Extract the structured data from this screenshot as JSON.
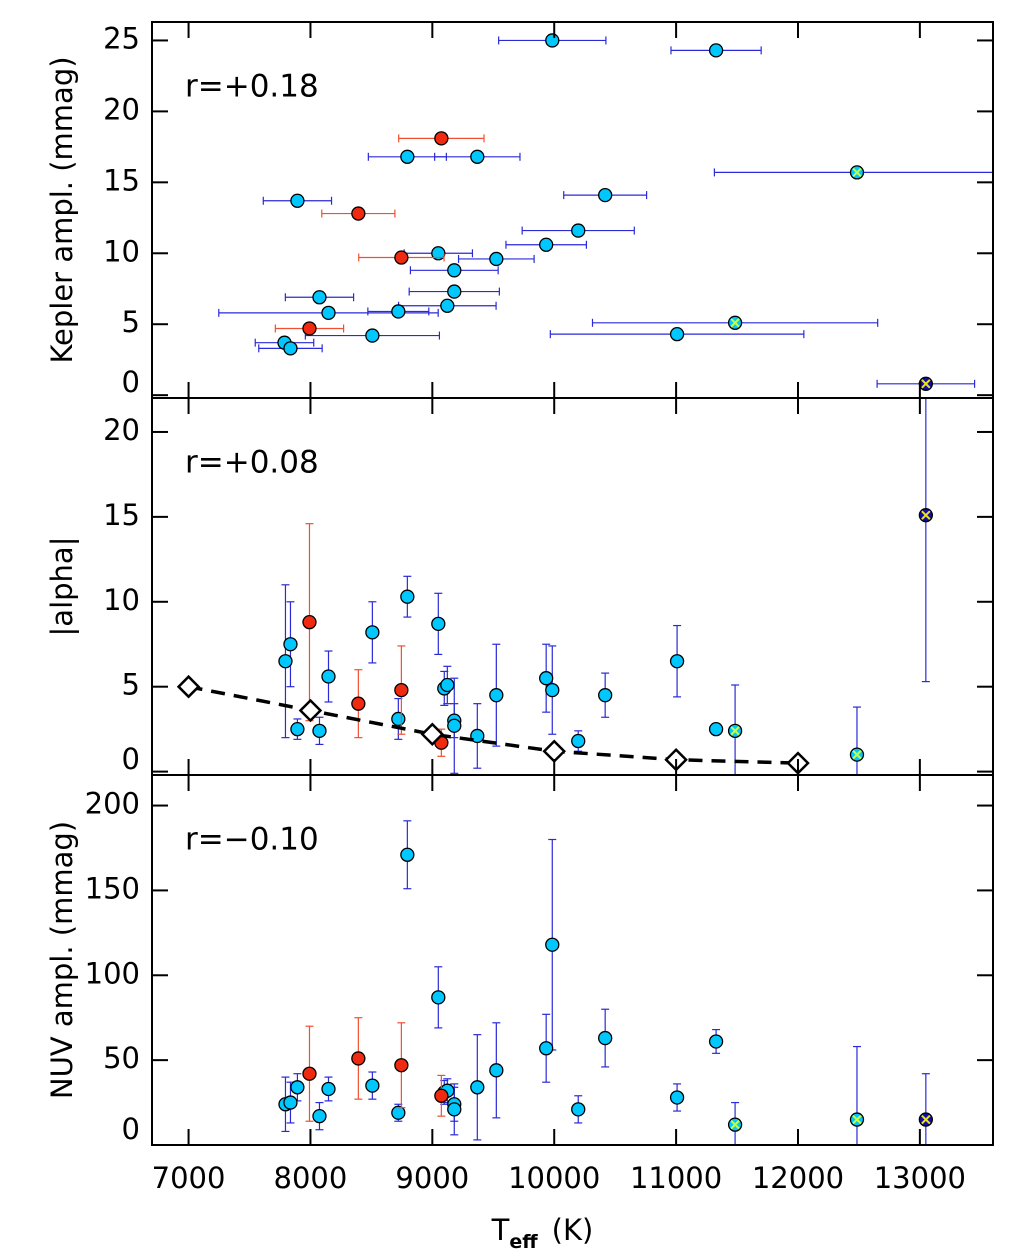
{
  "chart_data": [
    {
      "type": "scatter",
      "ylabel": "Kepler ampl. (mmag)",
      "annotation": "r=+0.18",
      "xlim": [
        6700,
        13600
      ],
      "xticks": [
        7000,
        8000,
        9000,
        10000,
        11000,
        12000,
        13000
      ],
      "ylim": [
        -0.2,
        26.3
      ],
      "yticks": [
        0,
        5,
        10,
        15,
        20,
        25
      ],
      "series": [
        {
          "color": "#00c8ff",
          "errcolor": "#2a2ad8",
          "marker": "circle",
          "x": [
            9984,
            11328,
            8795,
            9369,
            10418,
            7893,
            10197,
            9934,
            9049,
            9525,
            9180,
            9180,
            8074,
            9123,
            8721,
            8148,
            11008,
            8508,
            7787,
            7836
          ],
          "values": [
            25.0,
            24.3,
            16.8,
            16.8,
            14.1,
            13.7,
            11.6,
            10.6,
            10.0,
            9.6,
            8.8,
            7.3,
            6.9,
            6.3,
            5.9,
            5.8,
            4.3,
            4.2,
            3.7,
            3.3
          ],
          "xerr": [
            440,
            370,
            320,
            350,
            340,
            280,
            460,
            330,
            280,
            310,
            360,
            370,
            280,
            400,
            250,
            900,
            1040,
            550,
            240,
            260
          ]
        },
        {
          "color": "#f02a10",
          "errcolor": "#f05030",
          "marker": "circle",
          "x": [
            9074,
            8393,
            8746,
            7992
          ],
          "values": [
            18.1,
            12.8,
            9.7,
            4.7
          ],
          "xerr": [
            350,
            300,
            350,
            280
          ]
        },
        {
          "color": "#00c8ff",
          "errcolor": "#2a2ad8",
          "marker": "circle-x",
          "cross": "#c8ff40",
          "x": [
            12484,
            11484
          ],
          "values": [
            15.7,
            5.1
          ],
          "xerr": [
            1170,
            1170
          ]
        },
        {
          "color": "#1010a0",
          "errcolor": "#2a2ad8",
          "marker": "circle-x",
          "cross": "#f0e020",
          "x": [
            13049
          ],
          "values": [
            0.8
          ],
          "xerr": [
            400
          ]
        }
      ]
    },
    {
      "type": "scatter",
      "ylabel": "|alpha|",
      "annotation": "r=+0.08",
      "xlim": [
        6700,
        13600
      ],
      "xticks": [
        7000,
        8000,
        9000,
        10000,
        11000,
        12000,
        13000
      ],
      "ylim": [
        -0.2,
        22
      ],
      "yticks": [
        0,
        5,
        10,
        15,
        20
      ],
      "series": [
        {
          "color": "#00c8ff",
          "errcolor": "#2a2ad8",
          "marker": "circle",
          "x": [
            7795,
            7836,
            7893,
            8074,
            8148,
            8508,
            8721,
            8795,
            9049,
            9098,
            9123,
            9180,
            9180,
            9369,
            9525,
            9934,
            9984,
            10197,
            10418,
            11008,
            11328
          ],
          "values": [
            6.5,
            7.5,
            2.5,
            2.4,
            5.6,
            8.2,
            3.1,
            10.3,
            8.7,
            4.9,
            5.1,
            3.0,
            2.7,
            2.1,
            4.5,
            5.5,
            4.8,
            1.8,
            4.5,
            6.5,
            2.5
          ],
          "yerr": [
            4.5,
            2.5,
            0.6,
            0.8,
            1.5,
            1.8,
            1.2,
            1.2,
            1.8,
            1.0,
            1.1,
            1.0,
            2.8,
            1.9,
            3.0,
            2.0,
            2.6,
            0.6,
            1.3,
            2.1,
            0.3
          ]
        },
        {
          "color": "#f02a10",
          "errcolor": "#f05030",
          "marker": "circle",
          "x": [
            7992,
            8393,
            8746,
            9074
          ],
          "values": [
            8.8,
            4.0,
            4.8,
            1.7
          ],
          "yerr": [
            5.8,
            2.0,
            2.6,
            0.8
          ]
        },
        {
          "color": "#00c8ff",
          "errcolor": "#2a2ad8",
          "marker": "circle-x",
          "cross": "#c8ff40",
          "x": [
            11484,
            12484
          ],
          "values": [
            2.4,
            1.0
          ],
          "yerr": [
            2.7,
            2.8
          ]
        },
        {
          "color": "#1010a0",
          "errcolor": "#2a2ad8",
          "marker": "circle-x",
          "cross": "#f0e020",
          "x": [
            13049
          ],
          "values": [
            15.1
          ],
          "yerr": [
            9.8
          ]
        },
        {
          "color": "#000000",
          "marker": "diamond",
          "line": "dashed",
          "x": [
            7000,
            8000,
            9000,
            10000,
            11000,
            12000
          ],
          "values": [
            5.0,
            3.6,
            2.2,
            1.2,
            0.7,
            0.5
          ]
        }
      ]
    },
    {
      "type": "scatter",
      "ylabel": "NUV ampl. (mmag)",
      "annotation": "r=−0.10",
      "xlabel": {
        "main": "T",
        "sub": "eff",
        "unit": "(K)"
      },
      "xlim": [
        6700,
        13600
      ],
      "xticks": [
        7000,
        8000,
        9000,
        10000,
        11000,
        12000,
        13000
      ],
      "ylim": [
        0,
        218
      ],
      "yticks": [
        0,
        50,
        100,
        150,
        200
      ],
      "series": [
        {
          "color": "#00c8ff",
          "errcolor": "#2a2ad8",
          "marker": "circle",
          "x": [
            7795,
            7836,
            7893,
            8074,
            8148,
            8508,
            8721,
            8795,
            9049,
            9098,
            9123,
            9180,
            9180,
            9369,
            9525,
            9934,
            9984,
            10197,
            10418,
            11008,
            11328
          ],
          "values": [
            24,
            25,
            34,
            17,
            33,
            35,
            19,
            171,
            87,
            31,
            32,
            24,
            21,
            34,
            44,
            57,
            118,
            21,
            63,
            28,
            61
          ],
          "yerr": [
            16,
            12,
            8,
            8,
            7,
            8,
            5,
            20,
            18,
            7,
            7,
            10,
            15,
            31,
            28,
            20,
            62,
            8,
            17,
            8,
            7
          ]
        },
        {
          "color": "#f02a10",
          "errcolor": "#f05030",
          "marker": "circle",
          "x": [
            7992,
            8393,
            8746,
            9074
          ],
          "values": [
            42,
            51,
            47,
            29
          ],
          "yerr": [
            28,
            24,
            25,
            12
          ]
        },
        {
          "color": "#00c8ff",
          "errcolor": "#2a2ad8",
          "marker": "circle-x",
          "cross": "#c8ff40",
          "x": [
            11484,
            12484
          ],
          "values": [
            12,
            15
          ],
          "yerr": [
            13,
            43
          ]
        },
        {
          "color": "#1010a0",
          "errcolor": "#2a2ad8",
          "marker": "circle-x",
          "cross": "#f0e020",
          "x": [
            13049
          ],
          "values": [
            15
          ],
          "yerr": [
            27
          ]
        }
      ]
    }
  ]
}
